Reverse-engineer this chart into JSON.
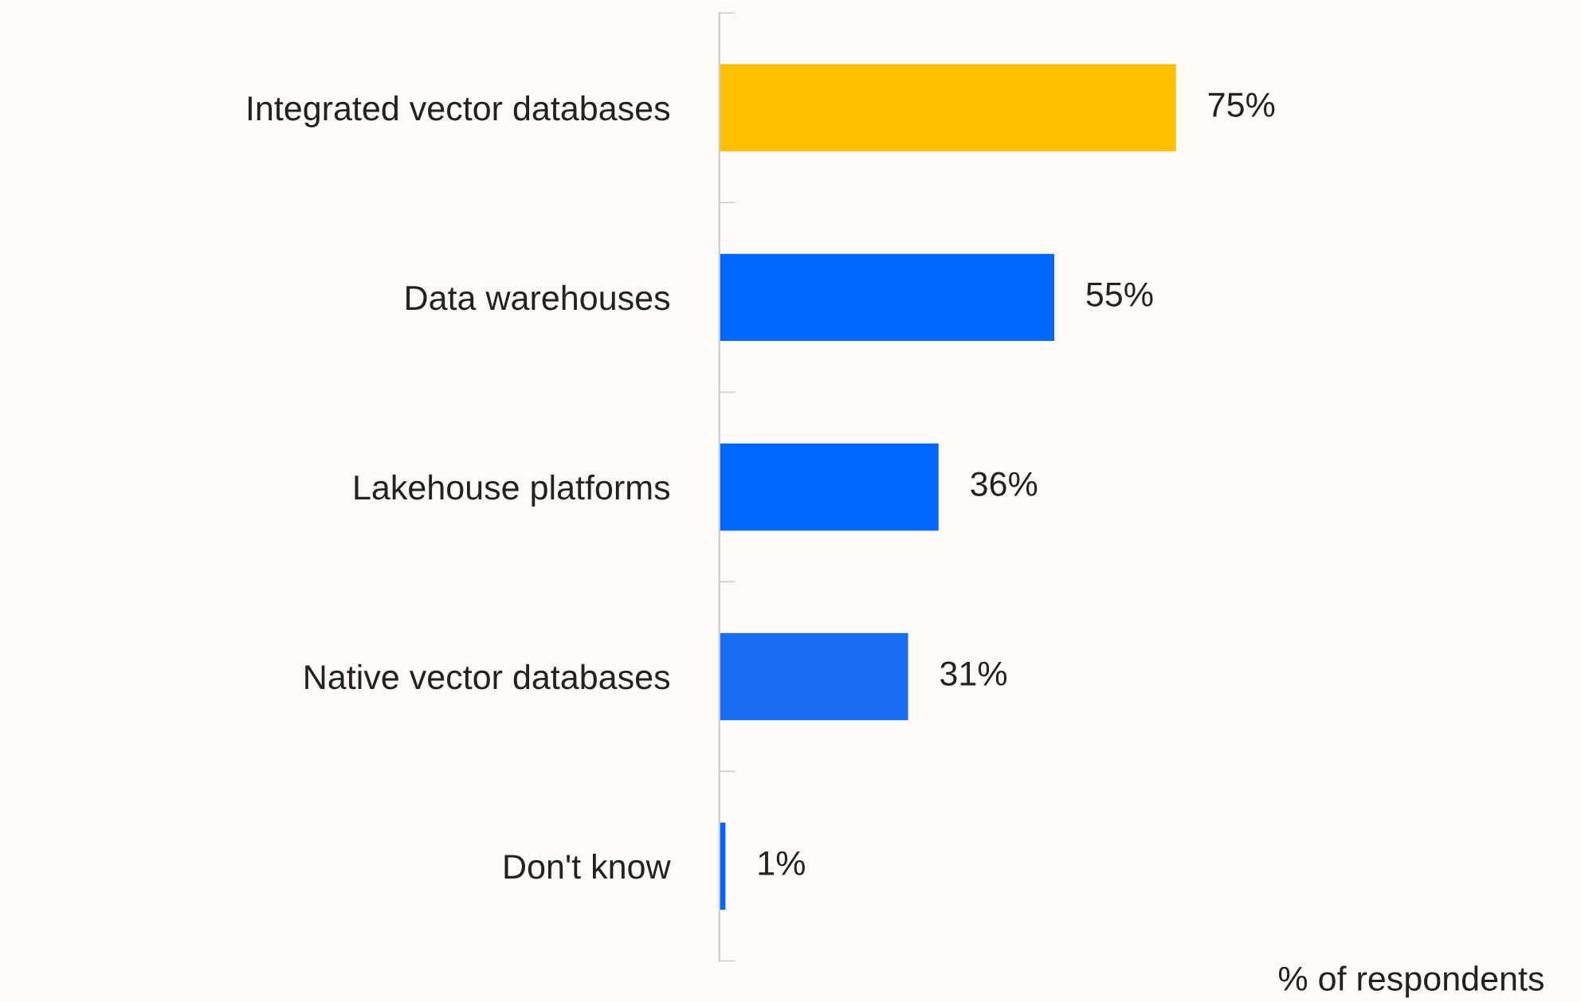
{
  "chart_data": {
    "type": "bar",
    "orientation": "horizontal",
    "xlabel": "% of respondents",
    "categories": [
      "Integrated vector databases",
      "Data warehouses",
      "Lakehouse platforms",
      "Native vector databases",
      "Don't know"
    ],
    "values": [
      75,
      55,
      36,
      31,
      1
    ],
    "colors": [
      "#ffc000",
      "#0066ff",
      "#0066ff",
      "#1a6cf0",
      "#0066ff"
    ],
    "value_labels": [
      "75%",
      "55%",
      "36%",
      "31%",
      "1%"
    ],
    "grid": false,
    "legend": false
  }
}
